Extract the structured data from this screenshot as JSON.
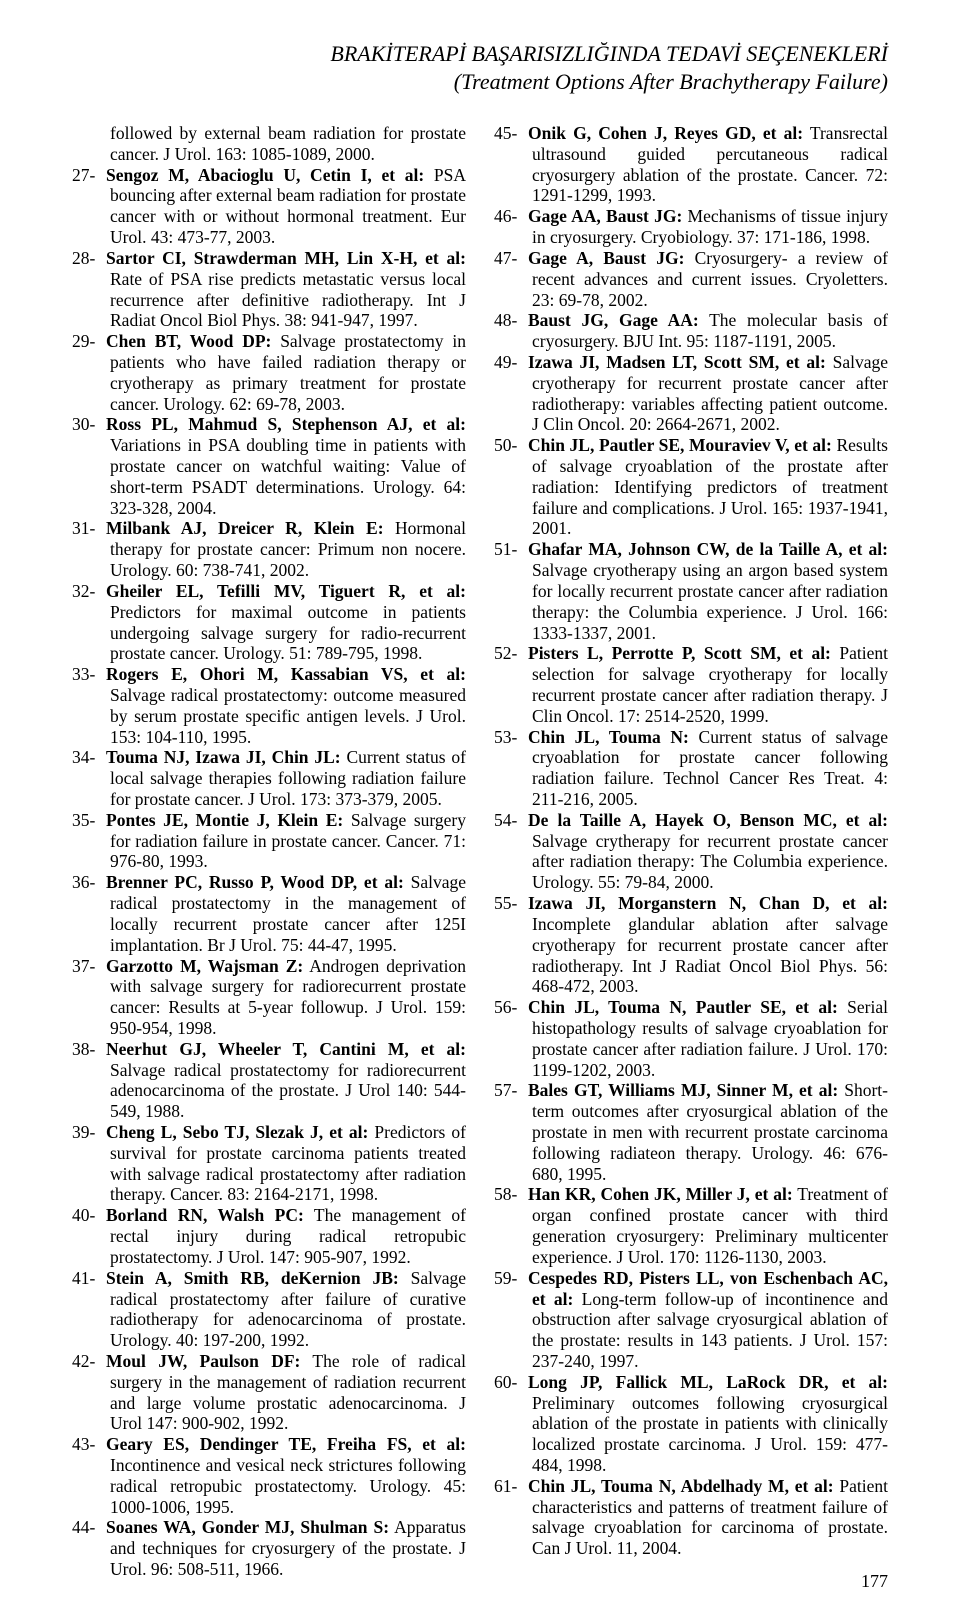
{
  "header": {
    "title_line1": "BRAKİTERAPİ BAŞARISIZLIĞINDA TEDAVİ SEÇENEKLERİ",
    "title_line2": "(Treatment Options After Brachytherapy Failure)"
  },
  "lead_text": "followed by external beam radiation for prostate cancer. J Urol. 163: 1085-1089, 2000.",
  "references": [
    {
      "n": "27-",
      "b": "Sengoz M, Abacioglu U, Cetin I, et al:",
      "r": " PSA bouncing after external beam radiation for prostate cancer with or without hormonal treatment. Eur Urol. 43: 473-77, 2003."
    },
    {
      "n": "28-",
      "b": "Sartor CI, Strawderman MH, Lin X-H, et al:",
      "r": " Rate of PSA rise predicts metastatic versus local recurrence after definitive radiotherapy. Int J Radiat Oncol Biol Phys. 38: 941-947, 1997."
    },
    {
      "n": "29-",
      "b": "Chen BT, Wood DP:",
      "r": " Salvage prostatectomy in patients who have failed radiation therapy or cryotherapy as primary treatment for prostate cancer. Urology. 62: 69-78, 2003."
    },
    {
      "n": "30-",
      "b": "Ross PL, Mahmud S, Stephenson AJ, et al:",
      "r": " Variations in PSA doubling time in patients with prostate cancer on watchful waiting: Value of short-term PSADT determinations. Urology. 64: 323-328, 2004."
    },
    {
      "n": "31-",
      "b": "Milbank AJ, Dreicer R, Klein E:",
      "r": " Hormonal therapy for prostate cancer: Primum non nocere. Urology. 60: 738-741, 2002."
    },
    {
      "n": "32-",
      "b": "Gheiler EL, Tefilli MV, Tiguert R, et al:",
      "r": " Predictors for maximal outcome in patients undergoing salvage surgery for radio-recurrent prostate cancer. Urology. 51: 789-795, 1998."
    },
    {
      "n": "33-",
      "b": "Rogers E, Ohori M, Kassabian VS, et al:",
      "r": " Salvage radical prostatectomy: outcome measured by serum prostate specific antigen levels. J Urol. 153: 104-110, 1995."
    },
    {
      "n": "34-",
      "b": "Touma NJ, Izawa JI, Chin JL:",
      "r": " Current status of local salvage therapies following radiation failure for prostate cancer. J Urol. 173: 373-379, 2005."
    },
    {
      "n": "35-",
      "b": "Pontes JE, Montie J, Klein E:",
      "r": " Salvage surgery for radiation failure in prostate cancer. Cancer. 71: 976-80, 1993."
    },
    {
      "n": "36-",
      "b": "Brenner PC, Russo P, Wood DP, et al:",
      "r": " Salvage radical prostatectomy in the management of locally recurrent prostate cancer after 125I implantation. Br J Urol. 75: 44-47, 1995."
    },
    {
      "n": "37-",
      "b": "Garzotto M, Wajsman Z:",
      "r": " Androgen deprivation with salvage surgery for radiorecurrent prostate cancer: Results at 5-year followup. J Urol. 159: 950-954, 1998."
    },
    {
      "n": "38-",
      "b": "Neerhut GJ, Wheeler T, Cantini M, et al:",
      "r": " Salvage radical prostatectomy for radiorecurrent adenocarcinoma of the prostate. J Urol 140: 544-549, 1988."
    },
    {
      "n": "39-",
      "b": "Cheng L, Sebo TJ, Slezak J, et al:",
      "r": " Predictors of survival for prostate carcinoma patients treated with salvage radical prostatectomy after radiation therapy. Cancer. 83: 2164-2171, 1998."
    },
    {
      "n": "40-",
      "b": "Borland RN, Walsh PC:",
      "r": " The management of rectal injury during radical retropubic prostatectomy. J Urol. 147: 905-907, 1992."
    },
    {
      "n": "41-",
      "b": "Stein A, Smith RB, deKernion JB:",
      "r": " Salvage radical prostatectomy after failure of curative radiotherapy for adenocarcinoma of prostate. Urology. 40: 197-200, 1992."
    },
    {
      "n": "42-",
      "b": "Moul JW, Paulson DF:",
      "r": " The role of radical surgery in the management of radiation recurrent and large volume prostatic adenocarcinoma. J Urol 147: 900-902, 1992."
    },
    {
      "n": "43-",
      "b": "Geary ES, Dendinger TE, Freiha FS, et al:",
      "r": " Incontinence and vesical neck strictures following radical retropubic prostatectomy. Urology. 45: 1000-1006, 1995."
    },
    {
      "n": "44-",
      "b": "Soanes WA, Gonder MJ, Shulman S:",
      "r": " Apparatus and techniques for cryosurgery of the prostate. J Urol. 96: 508-511, 1966."
    },
    {
      "n": "45-",
      "b": "Onik G, Cohen J, Reyes GD, et al:",
      "r": " Transrectal ultrasound guided percutaneous radical cryosurgery ablation of the prostate. Cancer. 72: 1291-1299, 1993."
    },
    {
      "n": "46-",
      "b": "Gage AA, Baust JG:",
      "r": " Mechanisms of tissue injury in cryosurgery. Cryobiology. 37: 171-186, 1998."
    },
    {
      "n": "47-",
      "b": "Gage A, Baust JG:",
      "r": " Cryosurgery- a review of recent advances and current issues. Cryoletters. 23: 69-78, 2002."
    },
    {
      "n": "48-",
      "b": "Baust JG, Gage AA:",
      "r": " The molecular basis of cryosurgery. BJU Int. 95: 1187-1191, 2005."
    },
    {
      "n": "49-",
      "b": "Izawa JI, Madsen LT, Scott SM, et al:",
      "r": " Salvage cryotherapy for recurrent prostate cancer after radiotherapy: variables affecting patient outcome. J Clin Oncol. 20: 2664-2671, 2002."
    },
    {
      "n": "50-",
      "b": "Chin JL, Pautler SE, Mouraviev V, et al:",
      "r": " Results of salvage cryoablation of the prostate after radiation: Identifying predictors of treatment failure and complications. J Urol. 165: 1937-1941, 2001."
    },
    {
      "n": "51-",
      "b": "Ghafar MA, Johnson CW, de la Taille A, et al:",
      "r": " Salvage cryotherapy using an argon based system for locally recurrent prostate cancer after radiation therapy: the Columbia experience. J Urol. 166: 1333-1337, 2001."
    },
    {
      "n": "52-",
      "b": "Pisters L, Perrotte P, Scott SM, et al:",
      "r": " Patient selection for salvage cryotherapy for locally recurrent prostate cancer after radiation therapy. J Clin Oncol. 17: 2514-2520, 1999."
    },
    {
      "n": "53-",
      "b": "Chin JL, Touma N:",
      "r": " Current status of salvage cryoablation for prostate cancer following radiation failure. Technol Cancer Res Treat. 4: 211-216, 2005."
    },
    {
      "n": "54-",
      "b": "De la Taille A, Hayek O, Benson MC, et al:",
      "r": " Salvage crytherapy for recurrent prostate cancer after radiation therapy: The Columbia experience. Urology. 55: 79-84, 2000."
    },
    {
      "n": "55-",
      "b": "Izawa JI, Morganstern N, Chan D, et al:",
      "r": " Incomplete glandular ablation after salvage cryotherapy for recurrent prostate cancer after radiotherapy. Int J Radiat Oncol Biol Phys. 56: 468-472, 2003."
    },
    {
      "n": "56-",
      "b": "Chin JL, Touma N, Pautler SE, et al:",
      "r": " Serial histopathology results of salvage cryoablation for prostate cancer after radiation failure. J Urol. 170: 1199-1202, 2003."
    },
    {
      "n": "57-",
      "b": "Bales GT, Williams MJ, Sinner M, et al:",
      "r": " Short-term outcomes after cryosurgical ablation of the prostate in men with recurrent prostate carcinoma following radiateon therapy. Urology. 46: 676-680, 1995."
    },
    {
      "n": "58-",
      "b": "Han KR, Cohen JK, Miller J, et al:",
      "r": " Treatment of organ confined prostate cancer with third generation cryosurgery: Preliminary multicenter experience. J Urol. 170: 1126-1130, 2003."
    },
    {
      "n": "59-",
      "b": "Cespedes RD, Pisters LL, von Eschenbach AC, et al:",
      "r": " Long-term follow-up of incontinence and obstruction after salvage cryosurgical ablation of the prostate: results in 143 patients. J Urol. 157: 237-240, 1997."
    },
    {
      "n": "60-",
      "b": "Long JP, Fallick ML, LaRock DR, et al:",
      "r": " Preliminary outcomes following cryosurgical ablation of the prostate in patients with clinically localized prostate carcinoma. J Urol. 159: 477-484, 1998."
    },
    {
      "n": "61-",
      "b": "Chin JL, Touma N, Abdelhady M, et al:",
      "r": " Patient characteristics and patterns of treatment failure of salvage cryoablation for carcinoma of prostate. Can J Urol. 11, 2004."
    }
  ],
  "page_number": "177"
}
